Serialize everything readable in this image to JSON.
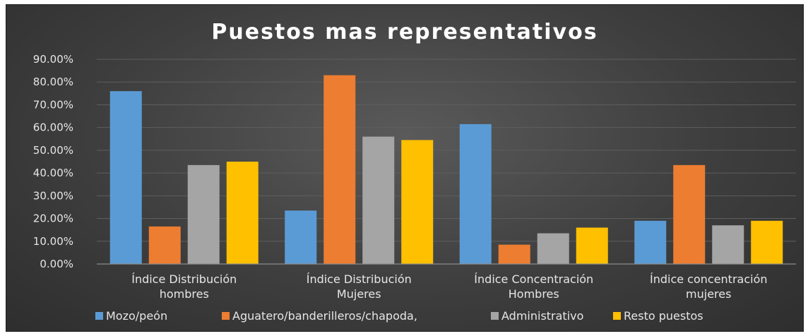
{
  "chart_data": {
    "type": "bar",
    "title": "Puestos mas representativos",
    "categories": [
      [
        "Índice Distribución",
        "hombres"
      ],
      [
        "Índice Distribución",
        "Mujeres"
      ],
      [
        "Índice Concentración",
        "Hombres"
      ],
      [
        "Índice concentración",
        "mujeres"
      ]
    ],
    "series": [
      {
        "name": "Mozo/peón",
        "color": "#5b9bd5",
        "values": [
          76.0,
          23.5,
          61.5,
          19.0
        ]
      },
      {
        "name": "Aguatero/banderilleros/chapoda,",
        "color": "#ed7d31",
        "values": [
          16.5,
          83.0,
          8.5,
          43.5
        ]
      },
      {
        "name": "Administrativo",
        "color": "#a5a5a5",
        "values": [
          43.5,
          56.0,
          13.5,
          17.0
        ]
      },
      {
        "name": "Resto puestos",
        "color": "#ffc000",
        "values": [
          45.0,
          54.5,
          16.0,
          19.0
        ]
      }
    ],
    "y_ticks": [
      "0.00%",
      "10.00%",
      "20.00%",
      "30.00%",
      "40.00%",
      "50.00%",
      "60.00%",
      "70.00%",
      "80.00%",
      "90.00%"
    ],
    "ylim": [
      0,
      90
    ],
    "grid": true,
    "legend_position": "bottom"
  }
}
